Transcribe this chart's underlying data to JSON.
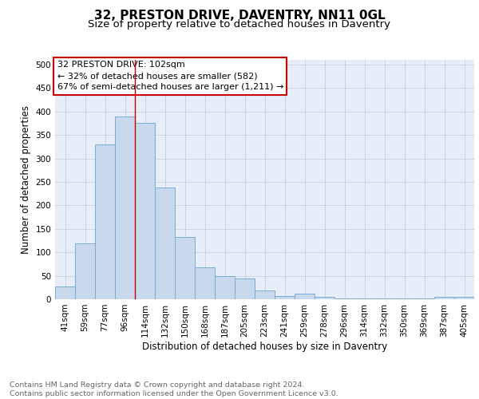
{
  "title": "32, PRESTON DRIVE, DAVENTRY, NN11 0GL",
  "subtitle": "Size of property relative to detached houses in Daventry",
  "xlabel": "Distribution of detached houses by size in Daventry",
  "ylabel": "Number of detached properties",
  "categories": [
    "41sqm",
    "59sqm",
    "77sqm",
    "96sqm",
    "114sqm",
    "132sqm",
    "150sqm",
    "168sqm",
    "187sqm",
    "205sqm",
    "223sqm",
    "241sqm",
    "259sqm",
    "278sqm",
    "296sqm",
    "314sqm",
    "332sqm",
    "350sqm",
    "369sqm",
    "387sqm",
    "405sqm"
  ],
  "values": [
    28,
    119,
    330,
    390,
    375,
    238,
    133,
    68,
    50,
    44,
    18,
    7,
    12,
    5,
    2,
    2,
    2,
    2,
    2,
    5,
    5
  ],
  "bar_color": "#c8d9ee",
  "bar_edge_color": "#7aadd4",
  "grid_color": "#c8d4e8",
  "background_color": "#e8eef8",
  "annotation_line1": "32 PRESTON DRIVE: 102sqm",
  "annotation_line2": "← 32% of detached houses are smaller (582)",
  "annotation_line3": "67% of semi-detached houses are larger (1,211) →",
  "annotation_box_color": "white",
  "annotation_box_edge_color": "#cc0000",
  "vline_x": 3.5,
  "vline_color": "#cc0000",
  "ylim": [
    0,
    510
  ],
  "yticks": [
    0,
    50,
    100,
    150,
    200,
    250,
    300,
    350,
    400,
    450,
    500
  ],
  "footnote": "Contains HM Land Registry data © Crown copyright and database right 2024.\nContains public sector information licensed under the Open Government Licence v3.0.",
  "title_fontsize": 11,
  "subtitle_fontsize": 9.5,
  "xlabel_fontsize": 8.5,
  "ylabel_fontsize": 8.5,
  "tick_fontsize": 7.5,
  "annotation_fontsize": 8,
  "footnote_fontsize": 6.8
}
